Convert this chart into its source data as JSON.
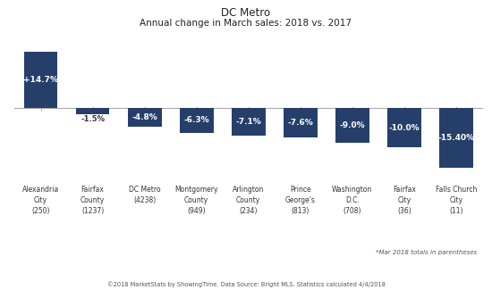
{
  "title_line1": "DC Metro",
  "title_line2": "Annual change in March sales: 2018 vs. 2017",
  "categories": [
    "Alexandria\nCity\n(250)",
    "Fairfax\nCounty\n(1237)",
    "DC Metro\n(4238)",
    "Montgomery\nCounty\n(949)",
    "Arlington\nCounty\n(234)",
    "Prince\nGeorge's\n(813)",
    "Washington\nD.C.\n(708)",
    "Fairfax\nCity\n(36)",
    "Falls Church\nCity\n(11)"
  ],
  "values": [
    14.7,
    -1.5,
    -4.8,
    -6.3,
    -7.1,
    -7.6,
    -9.0,
    -10.0,
    -15.4
  ],
  "labels": [
    "+14.7%",
    "-1.5%",
    "-4.8%",
    "-6.3%",
    "-7.1%",
    "-7.6%",
    "-9.0%",
    "-10.0%",
    "-15.40%"
  ],
  "label_outside": [
    false,
    true,
    false,
    false,
    false,
    false,
    false,
    false,
    false
  ],
  "bar_color": "#253F6A",
  "ylim": [
    -18.5,
    17.5
  ],
  "footnote": "*Mar 2018 totals in parentheses",
  "source": "©2018 MarketStats by ShowingTime. Data Source: Bright MLS. Statistics calculated 4/4/2018",
  "background_color": "#ffffff"
}
